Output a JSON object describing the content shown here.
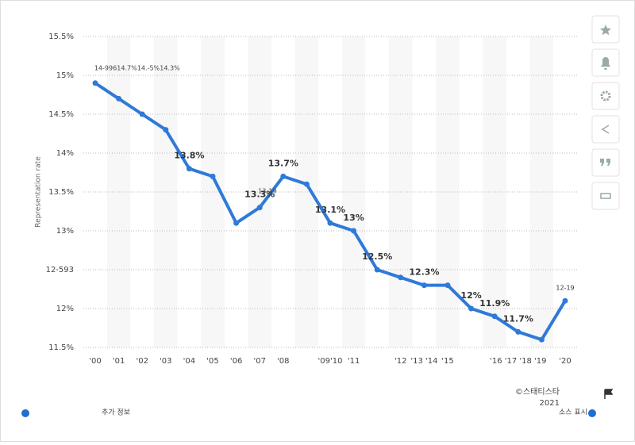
{
  "chart_data": {
    "type": "line",
    "y_label": "Representation rate",
    "categories": [
      "'00",
      "'01",
      "'02",
      "'03",
      "'04",
      "'05",
      "'06",
      "'07",
      "'08",
      null,
      "'09'10",
      "'11",
      null,
      "'12",
      "'13 '14",
      "'15",
      null,
      null,
      "'16 '17 '18 '19",
      null,
      "'20"
    ],
    "values": [
      14.9,
      14.7,
      14.5,
      14.3,
      13.8,
      13.7,
      13.1,
      13.3,
      13.7,
      13.6,
      13.1,
      13.0,
      12.5,
      12.4,
      12.3,
      12.3,
      12.0,
      11.9,
      11.7,
      11.6,
      12.1
    ],
    "value_labels": [
      "14-996",
      "14.7%",
      "14.-5%",
      "14.3%",
      "13.8%",
      null,
      null,
      "13.3%",
      "13.7%",
      null,
      "13.1%",
      "13%",
      "12.5%",
      null,
      "12.3%",
      null,
      "12%",
      "11.9%",
      "11.7%",
      null,
      "12-19"
    ],
    "annotations": [
      "13-19"
    ],
    "color": "#2f7ad8",
    "ylim": [
      11.5,
      15.5
    ],
    "yticks": [
      {
        "value": 11.5,
        "label": "11.5%"
      },
      {
        "value": 12,
        "label": "12%"
      },
      {
        "value": 12.5,
        "label": "12-593"
      },
      {
        "value": 13,
        "label": "13%"
      },
      {
        "value": 13.5,
        "label": "13.5%"
      },
      {
        "value": 14,
        "label": "14%"
      },
      {
        "value": 14.5,
        "label": "14.5%"
      },
      {
        "value": 15,
        "label": "15%"
      },
      {
        "value": 15.5,
        "label": "15.5%"
      }
    ],
    "grid": true
  },
  "footer": {
    "more_info": "추가 정보",
    "copyright_line1": "©스태티스타",
    "copyright_line2": "2021",
    "source": "소스 표시"
  }
}
